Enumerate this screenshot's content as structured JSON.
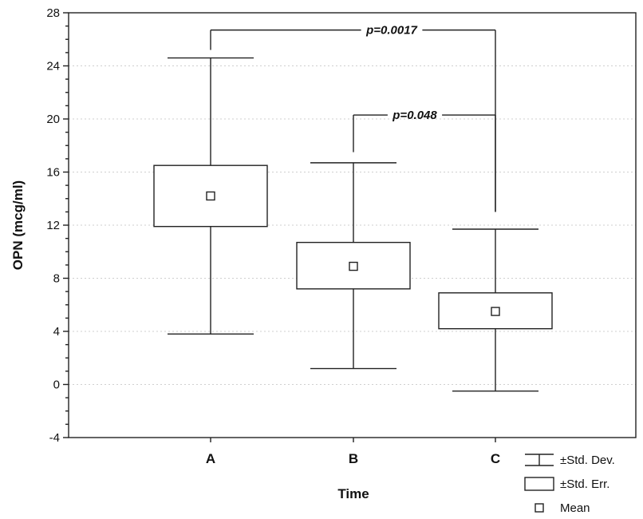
{
  "chart_data": {
    "type": "box",
    "xlabel": "Time",
    "ylabel": "OPN (mcg/ml)",
    "ylim": [
      -4,
      28
    ],
    "yticks": [
      -4,
      0,
      4,
      8,
      12,
      16,
      20,
      24,
      28
    ],
    "grid": true,
    "categories": [
      "A",
      "B",
      "C"
    ],
    "groups": [
      {
        "category": "A",
        "mean": 14.2,
        "se_low": 11.9,
        "se_high": 16.5,
        "sd_low": 3.8,
        "sd_high": 24.6
      },
      {
        "category": "B",
        "mean": 8.9,
        "se_low": 7.2,
        "se_high": 10.7,
        "sd_low": 1.2,
        "sd_high": 16.7
      },
      {
        "category": "C",
        "mean": 5.5,
        "se_low": 4.2,
        "se_high": 6.9,
        "sd_low": -0.5,
        "sd_high": 11.7
      }
    ],
    "annotations": [
      {
        "from": "A",
        "to": "C",
        "text": "p=0.0017",
        "y": 26.7,
        "from_end": 25.2,
        "to_end": 13.0
      },
      {
        "from": "B",
        "to": "C",
        "text": "p=0.048",
        "y": 20.3,
        "from_end": 17.5,
        "to_end": 13.0
      }
    ],
    "legend": {
      "placement": "bottom-right",
      "items": [
        {
          "key": "sd",
          "label": "±Std. Dev."
        },
        {
          "key": "se",
          "label": "±Std. Err."
        },
        {
          "key": "mean",
          "label": "Mean"
        }
      ]
    }
  }
}
